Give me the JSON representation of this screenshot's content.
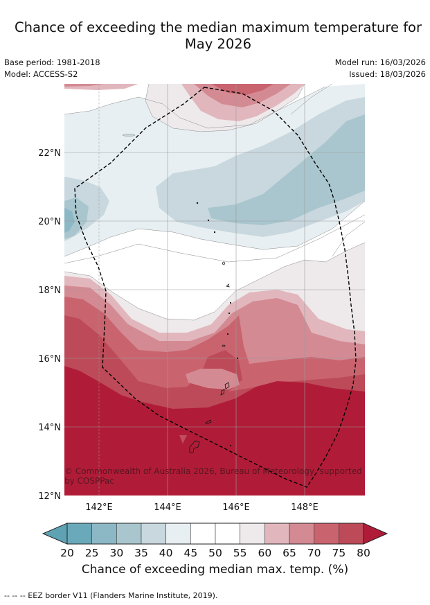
{
  "title_line1": "Chance of exceeding the median maximum temperature for",
  "title_line2": "May 2026",
  "base_period": "Base period: 1981-2018",
  "model": "Model: ACCESS-S2",
  "model_run": "Model run: 16/03/2026",
  "issued": "Issued: 18/03/2026",
  "y_ticks": [
    "22°N",
    "20°N",
    "18°N",
    "16°N",
    "14°N",
    "12°N"
  ],
  "x_ticks": [
    "142°E",
    "144°E",
    "146°E",
    "148°E"
  ],
  "copyright": "© Commonwealth of Australia 2026, Bureau of Meteorology, supported by COSPPac",
  "colorbar": {
    "ticks": [
      "20",
      "25",
      "30",
      "35",
      "40",
      "45",
      "50",
      "55",
      "60",
      "65",
      "70",
      "75",
      "80"
    ],
    "colors": [
      "#6aa9b9",
      "#8cb8c6",
      "#a9c6ce",
      "#c8d8de",
      "#e8eff2",
      "#ffffff",
      "#ffffff",
      "#eeeaec",
      "#e1b7bd",
      "#d48a93",
      "#c9646f",
      "#bd4a58"
    ],
    "under_color": "#5ea2b3",
    "over_color": "#b01c38",
    "label": "Chance of exceeding median max. temp. (%)"
  },
  "footnote": "--  --  -- EEZ border V11 (Flanders Marine Institute, 2019)."
}
